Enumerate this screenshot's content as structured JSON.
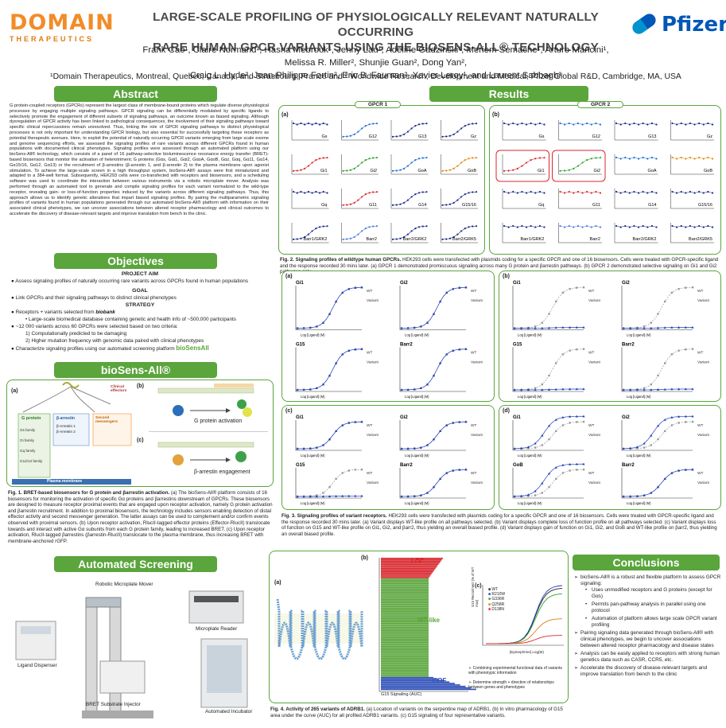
{
  "header": {
    "logo_word": "DOMAIN",
    "logo_sub": "THERAPEUTICS",
    "title_line1": "LARGE-SCALE PROFILING OF PHYSIOLOGICALLY RELEVANT NATURALLY OCCURRING",
    "title_line2": "RARE HUMAN GPCR VARIANTS USING THE BIOSENS-ALL® TECHNOLOGY",
    "authors_line1": "Frank Cao¹, Claire Normand¹, Hasna Mebrouk¹, Jenny Lau¹, Adeline Gadzinski¹, Meriem Semache¹, Arturo Mancini¹, Melissa R. Miller², Shunjie Guan², Dong Yan²,",
    "authors_line2": "Craig L. Hyde², Jean-Philippe Fortin², Eric B. Fauman², Xavier Leroy¹, and Laurent Sabbagh¹",
    "affiliations": "¹Domain Therapeutics, Montreal, Quebec, Canada, and Strasbourg, France and ² Worldwide Research, Development and Medical, Pfizer Global R&D, Cambridge, MA, USA",
    "pfizer_logo": "Pfizer"
  },
  "abstract": {
    "heading": "Abstract",
    "text": "G protein-coupled receptors (GPCRs) represent the largest class of membrane-bound proteins which regulate diverse physiological processes by engaging multiple signaling pathways. GPCR signaling can be differentially modulated by specific ligands to selectively promote the engagement of different subsets of signaling pathways, an outcome known as biased signaling. Although dysregulation of GPCR activity has been linked to pathological consequences, the involvement of their signaling pathways toward specific clinical repercussions remain unresolved. Thus, linking the role of GPCR signaling pathways to distinct physiological processes is not only important for understanding GPCR biology, but also essential for successfully targeting these receptors as potential therapeutic avenues. Here, to exploit the potential of naturally occurring GPCR variants emerging from large scale exome and genome sequencing efforts, we assessed the signaling profiles of rare variants across different GPCRs found in human populations with documented clinical phenotypes. Signaling profiles were assessed through an automated platform using our bioSens-All® technology, which consists of a panel of 16 pathway-selective bioluminescence resonance energy transfer (BRET)-based biosensors that monitor the activation of heterotrimeric G proteins (Gαs, Gαi1, Gαi2, GαoA, GαoB, Gαz, Gαq, Gα11, Gα14, Gα15/16, Gα12, Gα13) or the recruitment of β-arrestins (β-arrestin 1, and β-arrestin 2) to the plasma membrane upon agonist stimulation. To achieve the large-scale screen in a high throughput system, bioSens-All® assays were first miniaturized and adapted to a 384-well format. Subsequently, HEK293 cells were co-transfected with receptors and biosensors, and a scheduling software was used to coordinate the interaction between various instruments via a robotic microplate mover. Analysis was performed through an automated tool to generate and compile signaling profiles for each variant normalized to the wild-type receptor, revealing gain- or loss-of-function properties induced by the variants across different signaling pathways. Thus, this approach allows us to identify genetic alterations that impart biased signaling profiles. By pairing the multiparametric signaling profiles of variants found in human populations generated through our automated bioSens-All® platform with information on their associated clinical phenotypes, we can uncover associations between altered receptor pharmacology and clinical outcomes to accelerate the discovery of disease-relevant targets and improve translation from bench to the clinic."
  },
  "objectives": {
    "heading": "Objectives",
    "aim_h": "PROJECT AIM",
    "aim": "Assess signaling profiles of naturally occurring rare variants across GPCRs found in human populations",
    "goal_h": "GOAL",
    "goal": "Link GPCRs and their signaling pathways to distinct clinical phenotypes",
    "strategy_h": "STRATEGY",
    "s1": "Receptors + variants selected from",
    "s1_logo": "biobank",
    "s1a": "Large-scale biomedical database containing genetic and health info of ~500,000 participants",
    "s2": "~12 000 variants across 60 GPCRs were selected based on two criteria:",
    "s2a_n": "1)",
    "s2a": "Computationally predicted to be damaging",
    "s2b_n": "2)",
    "s2b": "Higher mutation frequency with genomic data paired with clinical phenotypes",
    "s3": "Characterize signaling profiles using our automated screening platform",
    "s3_logo": "bioSensAll"
  },
  "biosens": {
    "heading": "bioSens-All®",
    "a": "(a)",
    "b": "(b)",
    "c": "(c)",
    "gprot": "G protein",
    "gs": "Gs family",
    "gi": "Gi family",
    "gq": "Gq family",
    "g12": "G12/13 family",
    "barr": "β-arrestin",
    "barr1": "β-Arrestin 1",
    "barr2": "β-Arrestin 2",
    "second": "Second messengers",
    "clinical": "Clinical effectors",
    "plasma": "Plasma membrane",
    "gact": "G protein activation",
    "bengage": "β-arrestin engagement",
    "caption_b": "Fig. 1. BRET-based biosensors for G protein and βarrestin activation.",
    "caption": " (a) The bioSens-All® platform consists of 16 biosensors for monitoring the activation of specific Gα proteins and βarrestins downstream of GPCRs. These biosensors are designed to measure receptor proximal events that are engaged upon receptor activation, namely G protein activation and βarrestin recruitment. In addition to proximal biosensors, the technology includes sensors enabling detection of distal effector activity and second messenger generation. The latter assays can be used to complement and/or confirm events observed with proximal sensors. (b) Upon receptor activation, RlucII-tagged effector proteins (Effector-RlucII) translocate towards and interact with active Gα subunits from each G protein family, leading to increased BRET. (c) Upon receptor activation, RlucII-tagged βarrestins (βarrestin-RlucII) translocate to the plasma membrane, thus increasing BRET with membrane-anchored rGFP."
  },
  "automated": {
    "heading": "Automated Screening Platform",
    "mover": "Robotic Microplate Mover",
    "reader": "Microplate Reader",
    "dispenser": "Ligand Dispenser",
    "injector": "BRET Substrate Injector",
    "incubator": "Automated Incubator"
  },
  "results": {
    "heading": "Results",
    "gpcr1": "GPCR 1",
    "gpcr2": "GPCR 2",
    "a": "(a)",
    "b": "(b)",
    "c": "(c)",
    "d": "(d)",
    "pathways": [
      "Gs",
      "G12",
      "G13",
      "Gz",
      "Gi1",
      "Gi2",
      "GoA",
      "GoB",
      "Gq",
      "G11",
      "G14",
      "G15/16",
      "Barr1/GRK2",
      "Barr2",
      "Barr2/GRK2",
      "Barr2/GRK5"
    ],
    "fig2_b": "Fig. 2. Signaling profiles of wildtype human GPCRs.",
    "fig2": " HEK293 cells were transfected with plasmids coding for a specific GPCR and one of 16 biosensors. Cells were treated with GPCR-specific ligand and the response recorded 30 mins later. (a) GPCR 1 demonstrated promiscuous signaling across many G protein and βarrestin pathways. (b) GPCR 2 demonstrated selective signaling on Gi1 and Gi2 pathways only.",
    "fig3_b": "Fig. 3. Signaling profiles of variant receptors.",
    "fig3": " HEK293 cells were transfected with plasmids coding for a specific GPCR and one of 16 biosensors. Cells were treated with GPCR-specific ligand and the response recorded 30 mins later. (a) Variant displays WT-like profile on all pathways selected. (b) Variant displays complete loss of function profile on all pathways selected. (c) Variant displays loss of function on G15 and WT-like profile on Gi1, Gi2, and βarr2, thus yielding an overall biased profile. (d) Variant displays gain of function on Gi1, Gi2, and GoB and WT-like profile on βarr2, thus yielding an overall biased profile.",
    "wt": "WT",
    "variant": "Variant",
    "xlabel": "Log [Ligand] (M)",
    "ylabel": "% of max",
    "fig3_panels": {
      "a": [
        "Gi1",
        "Gi2",
        "G15",
        "Barr2"
      ],
      "b": [
        "Gi1",
        "Gi2",
        "G15",
        "Barr2"
      ],
      "c": [
        "Gi1",
        "Gi2",
        "G15",
        "Barr2"
      ],
      "d": [
        "Gi1",
        "Gi2",
        "GoB",
        "Barr2"
      ]
    },
    "lof": "LOF",
    "wtlike": "WT-like",
    "gof": "GOF",
    "auc_label": "G15 Signaling (AUC)",
    "legend_c": [
      "WT",
      "R210W",
      "G336R",
      "Q258R",
      "D138N"
    ],
    "c_ylabel": "G15 Recruitment (% of WT max)",
    "c_xlabel": "[Epinephrine] Log(M)",
    "note1": "➢ Combining experimental functional data of variants with phenotypic information",
    "note2": "➢ Determine strength + direction of relationships between genes and phenotypes",
    "fig4_b": "Fig. 4. Activity of 265 variants of ADRB1.",
    "fig4": " (a) Location of variants on the serpentine map of ADRB1. (b) In vitro pharmacology of G15 area under the curve (AUC) for all profiled ADRB1 variants. (c) G15 signaling of four representative variants."
  },
  "conclusions": {
    "heading": "Conclusions",
    "c1": "bioSens-All® is a robust and flexible platform to assess GPCR signaling:",
    "c1a": "Uses unmodified receptors and G proteins (except for Gαs)",
    "c1b": "Permits pan-pathway analysis in parallel using one protocol",
    "c1c": "Automation of platform allows large scale GPCR variant profiling",
    "c2": "Pairing signaling data generated through bioSens-All® with clinical phenotypes, we begin to uncover associations between altered receptor pharmacology and disease states",
    "c3": "Analysis can be easily applied to receptors with strong human genetics data such as CASR, CCR5, etc.",
    "c4": "Accelerate the discovery of disease-relevant targets and improve translation from bench to the clinic"
  },
  "colors": {
    "green": "#5aa53c",
    "orange": "#f28c28",
    "pfizer": "#0057b8",
    "red": "#d9262e"
  }
}
